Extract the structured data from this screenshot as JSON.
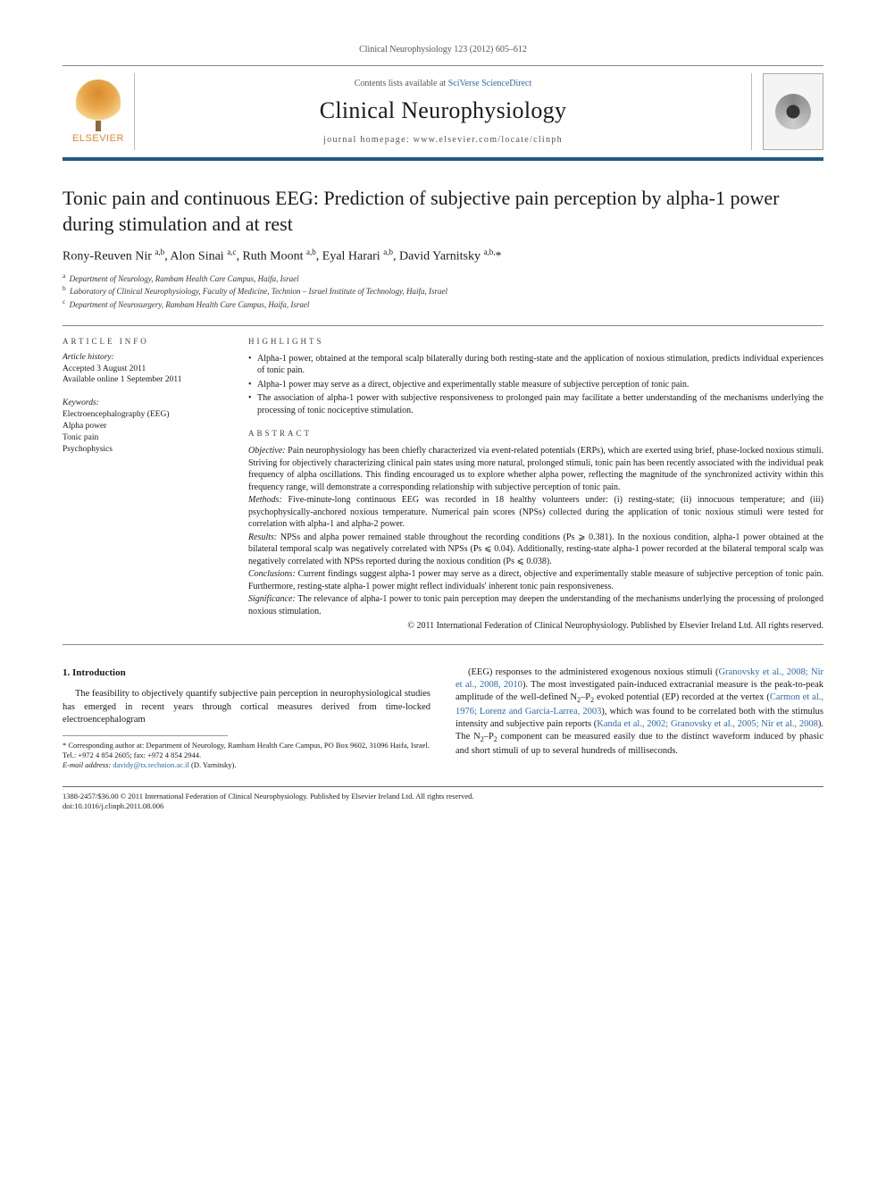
{
  "running_header": "Clinical Neurophysiology 123 (2012) 605–612",
  "masthead": {
    "publisher": "ELSEVIER",
    "contents_prefix": "Contents lists available at ",
    "contents_link": "SciVerse ScienceDirect",
    "journal": "Clinical Neurophysiology",
    "homepage_prefix": "journal homepage: ",
    "homepage": "www.elsevier.com/locate/clinph"
  },
  "title": "Tonic pain and continuous EEG: Prediction of subjective pain perception by alpha-1 power during stimulation and at rest",
  "authors_html": "Rony-Reuven Nir <sup>a,b</sup>, Alon Sinai <sup>a,c</sup>, Ruth Moont <sup>a,b</sup>, Eyal Harari <sup>a,b</sup>, David Yarnitsky <sup>a,b,</sup>*",
  "affiliations": [
    {
      "sup": "a",
      "text": "Department of Neurology, Rambam Health Care Campus, Haifa, Israel"
    },
    {
      "sup": "b",
      "text": "Laboratory of Clinical Neurophysiology, Faculty of Medicine, Technion – Israel Institute of Technology, Haifa, Israel"
    },
    {
      "sup": "c",
      "text": "Department of Neurosurgery, Rambam Health Care Campus, Haifa, Israel"
    }
  ],
  "article_info": {
    "label": "article info",
    "history_label": "Article history:",
    "history": [
      "Accepted 3 August 2011",
      "Available online 1 September 2011"
    ],
    "keywords_label": "Keywords:",
    "keywords": [
      "Electroencephalography (EEG)",
      "Alpha power",
      "Tonic pain",
      "Psychophysics"
    ]
  },
  "highlights": {
    "label": "highlights",
    "items": [
      "Alpha-1 power, obtained at the temporal scalp bilaterally during both resting-state and the application of noxious stimulation, predicts individual experiences of tonic pain.",
      "Alpha-1 power may serve as a direct, objective and experimentally stable measure of subjective perception of tonic pain.",
      "The association of alpha-1 power with subjective responsiveness to prolonged pain may facilitate a better understanding of the mechanisms underlying the processing of tonic nociceptive stimulation."
    ]
  },
  "abstract": {
    "label": "abstract",
    "objective_label": "Objective:",
    "objective": " Pain neurophysiology has been chiefly characterized via event-related potentials (ERPs), which are exerted using brief, phase-locked noxious stimuli. Striving for objectively characterizing clinical pain states using more natural, prolonged stimuli, tonic pain has been recently associated with the individual peak frequency of alpha oscillations. This finding encouraged us to explore whether alpha power, reflecting the magnitude of the synchronized activity within this frequency range, will demonstrate a corresponding relationship with subjective perception of tonic pain.",
    "methods_label": "Methods:",
    "methods": " Five-minute-long continuous EEG was recorded in 18 healthy volunteers under: (i) resting-state; (ii) innocuous temperature; and (iii) psychophysically-anchored noxious temperature. Numerical pain scores (NPSs) collected during the application of tonic noxious stimuli were tested for correlation with alpha-1 and alpha-2 power.",
    "results_label": "Results:",
    "results": " NPSs and alpha power remained stable throughout the recording conditions (Ps ⩾ 0.381). In the noxious condition, alpha-1 power obtained at the bilateral temporal scalp was negatively correlated with NPSs (Ps ⩽ 0.04). Additionally, resting-state alpha-1 power recorded at the bilateral temporal scalp was negatively correlated with NPSs reported during the noxious condition (Ps ⩽ 0.038).",
    "conclusions_label": "Conclusions:",
    "conclusions": " Current findings suggest alpha-1 power may serve as a direct, objective and experimentally stable measure of subjective perception of tonic pain. Furthermore, resting-state alpha-1 power might reflect individuals' inherent tonic pain responsiveness.",
    "significance_label": "Significance:",
    "significance": " The relevance of alpha-1 power to tonic pain perception may deepen the understanding of the mechanisms underlying the processing of prolonged noxious stimulation.",
    "copyright": "© 2011 International Federation of Clinical Neurophysiology. Published by Elsevier Ireland Ltd. All rights reserved."
  },
  "body": {
    "section_heading": "1. Introduction",
    "col1_para": "The feasibility to objectively quantify subjective pain perception in neurophysiological studies has emerged in recent years through cortical measures derived from time-locked electroencephalogram",
    "col2_pre": "(EEG) responses to the administered exogenous noxious stimuli (",
    "col2_link1": "Granovsky et al., 2008; Nir et al., 2008, 2010",
    "col2_mid1": "). The most investigated pain-induced extracranial measure is the peak-to-peak amplitude of the well-defined N",
    "col2_sub1": "2",
    "col2_mid1b": "–P",
    "col2_sub2": "2",
    "col2_mid2": " evoked potential (EP) recorded at the vertex (",
    "col2_link2": "Carmon et al., 1976; Lorenz and Garcia-Larrea, 2003",
    "col2_mid3": "), which was found to be correlated both with the stimulus intensity and subjective pain reports (",
    "col2_link3": "Kanda et al., 2002; Granovsky et al., 2005; Nir et al., 2008",
    "col2_mid4": "). The N",
    "col2_sub3": "2",
    "col2_mid4b": "–P",
    "col2_sub4": "2",
    "col2_tail": " component can be measured easily due to the distinct waveform induced by phasic and short stimuli of up to several hundreds of milliseconds."
  },
  "footnotes": {
    "corr": "* Corresponding author at: Department of Neurology, Rambam Health Care Campus, PO Box 9602, 31096 Haifa, Israel. Tel.: +972 4 854 2605; fax: +972 4 854 2944.",
    "email_label": "E-mail address:",
    "email": "davidy@tx.technion.ac.il",
    "email_who": " (D. Yarnitsky)."
  },
  "footer": {
    "line1": "1388-2457/$36.00 © 2011 International Federation of Clinical Neurophysiology. Published by Elsevier Ireland Ltd. All rights reserved.",
    "line2": "doi:10.1016/j.clinph.2011.08.006"
  },
  "colors": {
    "accent": "#1e5a8e",
    "link": "#2a6ab0",
    "publisher": "#e8862e"
  }
}
